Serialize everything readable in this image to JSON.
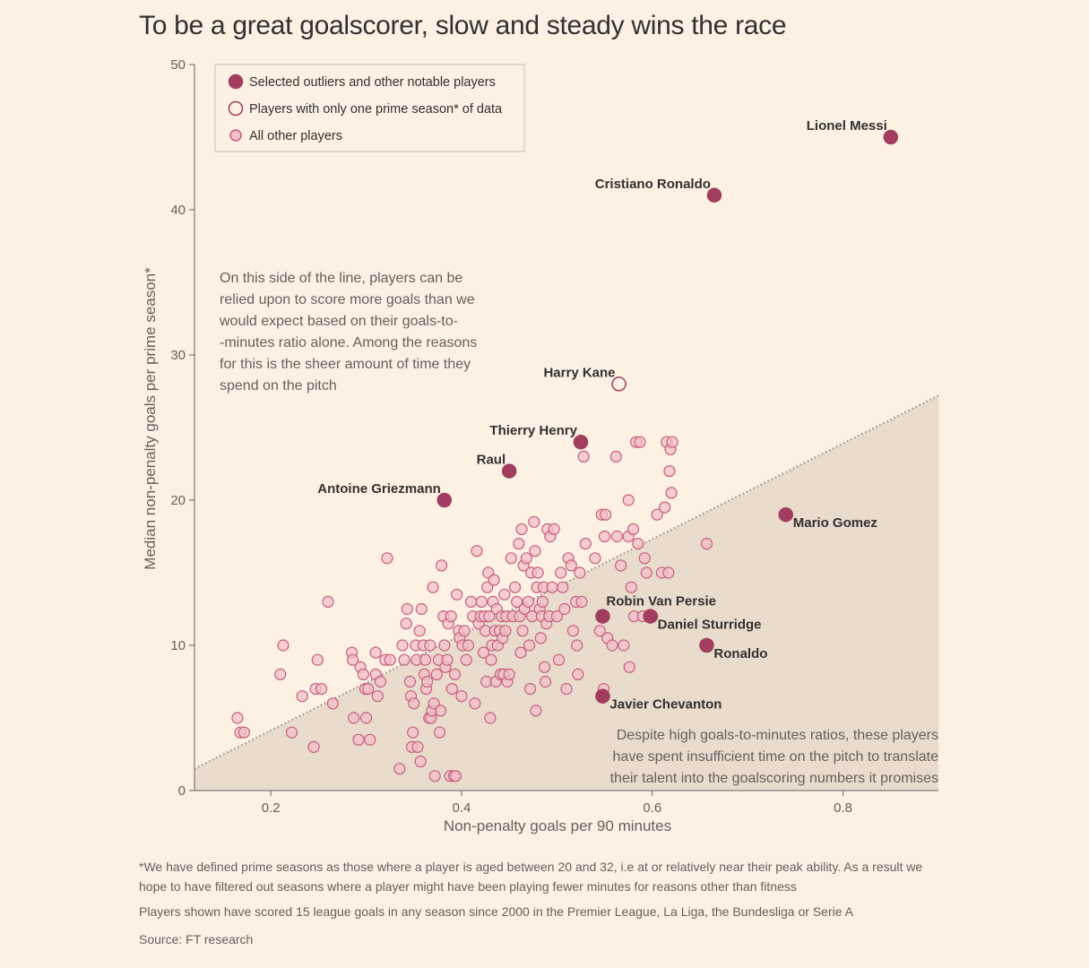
{
  "title": "To be a great goalscorer, slow and steady wins the race",
  "colors": {
    "background": "#fdf1e3",
    "highlight": "#a13e5f",
    "other_fill": "#f2bfc8",
    "other_stroke": "#c4607c",
    "shade": "#e9dccd"
  },
  "chart_data": {
    "type": "scatter",
    "xlabel": "Non-penalty goals per 90 minutes",
    "ylabel": "Median non-penalty goals per prime season*",
    "xlim": [
      0.12,
      0.9
    ],
    "ylim": [
      0,
      50
    ],
    "xticks": [
      "0.2",
      "0.4",
      "0.6",
      "0.8"
    ],
    "xtick_values": [
      0.2,
      0.4,
      0.6,
      0.8
    ],
    "yticks": [
      "0",
      "10",
      "20",
      "30",
      "40",
      "50"
    ],
    "ytick_values": [
      0,
      10,
      20,
      30,
      40,
      50
    ],
    "grid": false,
    "legend_placement": "top-left",
    "legend": [
      {
        "kind": "highlight",
        "label": "Selected outliers and other notable players"
      },
      {
        "kind": "one_season",
        "label": "Players with only one prime season* of data"
      },
      {
        "kind": "other",
        "label": "All other players"
      }
    ],
    "reference_line": {
      "x": [
        0.12,
        0.9
      ],
      "y": [
        1.5,
        27.2
      ]
    },
    "labeled_points": [
      {
        "name": "Lionel Messi",
        "x": 0.85,
        "y": 45,
        "kind": "highlight",
        "label_side": "left"
      },
      {
        "name": "Cristiano Ronaldo",
        "x": 0.665,
        "y": 41,
        "kind": "highlight",
        "label_side": "left"
      },
      {
        "name": "Harry Kane",
        "x": 0.565,
        "y": 28,
        "kind": "one_season",
        "label_side": "left"
      },
      {
        "name": "Thierry Henry",
        "x": 0.525,
        "y": 24,
        "kind": "highlight",
        "label_side": "left"
      },
      {
        "name": "Raul",
        "x": 0.45,
        "y": 22,
        "kind": "highlight",
        "label_side": "left"
      },
      {
        "name": "Antoine Griezmann",
        "x": 0.382,
        "y": 20,
        "kind": "highlight",
        "label_side": "left"
      },
      {
        "name": "Mario Gomez",
        "x": 0.74,
        "y": 19,
        "kind": "highlight",
        "label_side": "right"
      },
      {
        "name": "Robin Van Persie",
        "x": 0.548,
        "y": 12,
        "kind": "highlight",
        "label_side": "right-up"
      },
      {
        "name": "Daniel Sturridge",
        "x": 0.598,
        "y": 12,
        "kind": "highlight",
        "label_side": "right"
      },
      {
        "name": "Ronaldo",
        "x": 0.657,
        "y": 10,
        "kind": "highlight",
        "label_side": "right"
      },
      {
        "name": "Javier Chevanton",
        "x": 0.548,
        "y": 6.5,
        "kind": "highlight",
        "label_side": "right"
      }
    ],
    "other_points": [
      [
        0.165,
        5
      ],
      [
        0.168,
        4
      ],
      [
        0.172,
        4
      ],
      [
        0.21,
        8
      ],
      [
        0.213,
        10
      ],
      [
        0.222,
        4
      ],
      [
        0.233,
        6.5
      ],
      [
        0.245,
        3
      ],
      [
        0.247,
        7
      ],
      [
        0.249,
        9
      ],
      [
        0.253,
        7
      ],
      [
        0.26,
        13
      ],
      [
        0.265,
        6
      ],
      [
        0.285,
        9.5
      ],
      [
        0.286,
        9
      ],
      [
        0.287,
        5
      ],
      [
        0.292,
        3.5
      ],
      [
        0.294,
        8.5
      ],
      [
        0.297,
        8
      ],
      [
        0.299,
        7
      ],
      [
        0.3,
        5
      ],
      [
        0.302,
        7
      ],
      [
        0.304,
        3.5
      ],
      [
        0.31,
        8
      ],
      [
        0.31,
        9.5
      ],
      [
        0.312,
        6.5
      ],
      [
        0.315,
        7.5
      ],
      [
        0.32,
        9
      ],
      [
        0.322,
        16
      ],
      [
        0.325,
        9
      ],
      [
        0.335,
        1.5
      ],
      [
        0.338,
        10
      ],
      [
        0.34,
        9
      ],
      [
        0.342,
        11.5
      ],
      [
        0.343,
        12.5
      ],
      [
        0.346,
        7.5
      ],
      [
        0.347,
        6.5
      ],
      [
        0.348,
        3
      ],
      [
        0.349,
        4
      ],
      [
        0.35,
        6
      ],
      [
        0.352,
        10
      ],
      [
        0.353,
        9
      ],
      [
        0.354,
        3
      ],
      [
        0.356,
        11
      ],
      [
        0.357,
        2
      ],
      [
        0.358,
        12.5
      ],
      [
        0.36,
        10
      ],
      [
        0.361,
        8
      ],
      [
        0.362,
        9
      ],
      [
        0.363,
        7
      ],
      [
        0.364,
        7.5
      ],
      [
        0.366,
        5
      ],
      [
        0.367,
        10
      ],
      [
        0.368,
        5
      ],
      [
        0.369,
        5.5
      ],
      [
        0.37,
        14
      ],
      [
        0.371,
        6
      ],
      [
        0.372,
        1
      ],
      [
        0.374,
        8
      ],
      [
        0.376,
        9
      ],
      [
        0.377,
        4
      ],
      [
        0.378,
        5.5
      ],
      [
        0.379,
        15.5
      ],
      [
        0.381,
        12
      ],
      [
        0.382,
        10
      ],
      [
        0.383,
        8.5
      ],
      [
        0.385,
        9
      ],
      [
        0.386,
        11.5
      ],
      [
        0.388,
        1
      ],
      [
        0.389,
        12
      ],
      [
        0.39,
        7
      ],
      [
        0.392,
        1
      ],
      [
        0.393,
        8
      ],
      [
        0.394,
        1
      ],
      [
        0.395,
        13.5
      ],
      [
        0.397,
        11
      ],
      [
        0.398,
        10.5
      ],
      [
        0.4,
        6.5
      ],
      [
        0.401,
        10
      ],
      [
        0.403,
        11
      ],
      [
        0.405,
        9
      ],
      [
        0.407,
        10
      ],
      [
        0.41,
        13
      ],
      [
        0.412,
        12
      ],
      [
        0.414,
        6
      ],
      [
        0.416,
        16.5
      ],
      [
        0.418,
        11.5
      ],
      [
        0.42,
        12
      ],
      [
        0.421,
        13
      ],
      [
        0.423,
        9.5
      ],
      [
        0.424,
        12
      ],
      [
        0.425,
        11
      ],
      [
        0.426,
        7.5
      ],
      [
        0.427,
        14
      ],
      [
        0.428,
        15
      ],
      [
        0.429,
        12
      ],
      [
        0.43,
        5
      ],
      [
        0.431,
        9
      ],
      [
        0.432,
        10
      ],
      [
        0.433,
        13
      ],
      [
        0.434,
        14.5
      ],
      [
        0.435,
        11
      ],
      [
        0.436,
        7.5
      ],
      [
        0.437,
        12.5
      ],
      [
        0.438,
        10
      ],
      [
        0.44,
        11
      ],
      [
        0.441,
        8
      ],
      [
        0.442,
        12
      ],
      [
        0.443,
        10.5
      ],
      [
        0.444,
        8
      ],
      [
        0.445,
        13.5
      ],
      [
        0.446,
        11
      ],
      [
        0.447,
        12
      ],
      [
        0.448,
        7.5
      ],
      [
        0.45,
        8
      ],
      [
        0.452,
        16
      ],
      [
        0.454,
        12
      ],
      [
        0.456,
        14
      ],
      [
        0.458,
        13
      ],
      [
        0.46,
        17
      ],
      [
        0.461,
        12
      ],
      [
        0.462,
        9.5
      ],
      [
        0.463,
        18
      ],
      [
        0.464,
        11
      ],
      [
        0.465,
        15.5
      ],
      [
        0.466,
        12.5
      ],
      [
        0.468,
        16
      ],
      [
        0.47,
        13
      ],
      [
        0.471,
        10
      ],
      [
        0.472,
        7
      ],
      [
        0.473,
        15
      ],
      [
        0.474,
        12
      ],
      [
        0.476,
        18.5
      ],
      [
        0.477,
        16.5
      ],
      [
        0.478,
        5.5
      ],
      [
        0.479,
        14
      ],
      [
        0.48,
        15
      ],
      [
        0.482,
        12.5
      ],
      [
        0.483,
        10.5
      ],
      [
        0.484,
        12
      ],
      [
        0.485,
        13
      ],
      [
        0.486,
        14
      ],
      [
        0.487,
        8.5
      ],
      [
        0.488,
        7.5
      ],
      [
        0.489,
        11.5
      ],
      [
        0.49,
        18
      ],
      [
        0.492,
        12
      ],
      [
        0.493,
        17.5
      ],
      [
        0.495,
        14
      ],
      [
        0.497,
        18
      ],
      [
        0.5,
        12
      ],
      [
        0.502,
        9
      ],
      [
        0.504,
        15
      ],
      [
        0.506,
        14
      ],
      [
        0.508,
        12.5
      ],
      [
        0.51,
        7
      ],
      [
        0.512,
        16
      ],
      [
        0.515,
        15.5
      ],
      [
        0.517,
        11
      ],
      [
        0.52,
        13
      ],
      [
        0.521,
        10
      ],
      [
        0.522,
        8
      ],
      [
        0.524,
        15
      ],
      [
        0.526,
        13
      ],
      [
        0.528,
        23
      ],
      [
        0.53,
        17
      ],
      [
        0.54,
        16
      ],
      [
        0.545,
        11
      ],
      [
        0.547,
        19
      ],
      [
        0.549,
        7
      ],
      [
        0.55,
        17.5
      ],
      [
        0.551,
        19
      ],
      [
        0.553,
        10.5
      ],
      [
        0.558,
        10
      ],
      [
        0.562,
        23
      ],
      [
        0.563,
        17.5
      ],
      [
        0.567,
        15.5
      ],
      [
        0.57,
        10
      ],
      [
        0.575,
        17.5
      ],
      [
        0.576,
        8.5
      ],
      [
        0.578,
        14
      ],
      [
        0.58,
        18
      ],
      [
        0.581,
        12
      ],
      [
        0.583,
        24
      ],
      [
        0.585,
        17
      ],
      [
        0.587,
        24
      ],
      [
        0.59,
        12
      ],
      [
        0.592,
        16
      ],
      [
        0.594,
        15
      ],
      [
        0.6,
        12
      ],
      [
        0.605,
        19
      ],
      [
        0.61,
        15
      ],
      [
        0.613,
        19.5
      ],
      [
        0.615,
        24
      ],
      [
        0.617,
        15
      ],
      [
        0.618,
        22
      ],
      [
        0.619,
        23.5
      ],
      [
        0.62,
        20.5
      ],
      [
        0.621,
        24
      ],
      [
        0.657,
        17
      ],
      [
        0.575,
        20
      ]
    ]
  },
  "annotations": {
    "above_line": [
      "On this side of the line, players can be",
      "relied upon to score more goals than we",
      "would expect based on their goals-to-",
      "-minutes ratio alone. Among the reasons",
      "for this is the sheer amount of time they",
      "spend on the pitch"
    ],
    "below_line": [
      "Despite high goals-to-minutes ratios, these players",
      "have spent insufficient time on the pitch to translate",
      "their talent into the goalscoring numbers it promises"
    ]
  },
  "footnotes": {
    "definition": "*We have defined prime seasons as those where a player is aged between 20 and 32, i.e at or relatively near their peak ability. As a result we hope to have filtered out seasons where a player might have been playing fewer minutes for reasons other than fitness",
    "selection": "Players shown have scored 15 league goals in any season since 2000 in the Premier League, La Liga, the Bundesliga or Serie A",
    "source": "Source: FT research"
  }
}
